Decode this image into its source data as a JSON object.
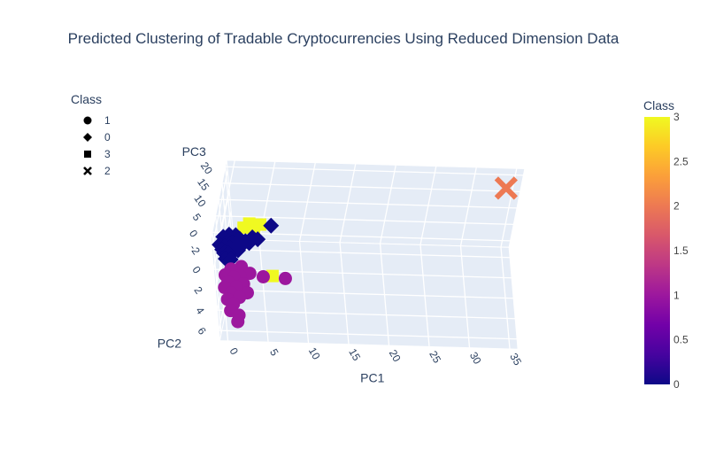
{
  "title": "Predicted Clustering of Tradable Cryptocurrencies Using Reduced Dimension Data",
  "legend": {
    "title": "Class",
    "items": [
      {
        "label": "1",
        "symbol": "circle"
      },
      {
        "label": "0",
        "symbol": "diamond"
      },
      {
        "label": "3",
        "symbol": "square"
      },
      {
        "label": "2",
        "symbol": "x"
      }
    ]
  },
  "colorbar": {
    "title": "Class",
    "ticks": [
      "0",
      "0.5",
      "1",
      "1.5",
      "2",
      "2.5",
      "3"
    ],
    "colors": [
      "#0d0887",
      "#46039f",
      "#7201a8",
      "#9c179e",
      "#bd3786",
      "#d8576b",
      "#ed7953",
      "#fb9f3a",
      "#fdca26",
      "#f0f921"
    ]
  },
  "axes": {
    "pc1": {
      "label": "PC1",
      "ticks": [
        "0",
        "5",
        "10",
        "15",
        "20",
        "25",
        "30",
        "35"
      ]
    },
    "pc2": {
      "label": "PC2",
      "ticks": [
        "-2",
        "0",
        "2",
        "4",
        "6"
      ]
    },
    "pc3": {
      "label": "PC3",
      "ticks": [
        "0",
        "5",
        "10",
        "15",
        "20"
      ]
    }
  },
  "chart_data": {
    "type": "scatter",
    "title": "Predicted Clustering of Tradable Cryptocurrencies Using Reduced Dimension Data",
    "xlabel": "PC1",
    "ylabel": "PC2",
    "zlabel": "PC3",
    "xlim": [
      -1,
      36
    ],
    "ylim": [
      -3,
      7
    ],
    "zlim": [
      -2,
      22
    ],
    "series": [
      {
        "name": "1",
        "class": 1,
        "symbol": "circle",
        "color": "#9c179e",
        "points": [
          {
            "pc1": 0.2,
            "pc2": 1.0,
            "pc3": -0.5
          },
          {
            "pc1": 0.5,
            "pc2": 1.6,
            "pc3": -0.8
          },
          {
            "pc1": 0.0,
            "pc2": 2.2,
            "pc3": -0.6
          },
          {
            "pc1": 0.8,
            "pc2": 2.6,
            "pc3": -1.0
          },
          {
            "pc1": 1.2,
            "pc2": 1.3,
            "pc3": -0.2
          },
          {
            "pc1": 1.5,
            "pc2": 2.0,
            "pc3": -0.9
          },
          {
            "pc1": 0.3,
            "pc2": 3.2,
            "pc3": -1.1
          },
          {
            "pc1": 1.0,
            "pc2": 3.6,
            "pc3": -1.2
          },
          {
            "pc1": 0.6,
            "pc2": 4.2,
            "pc3": -1.4
          },
          {
            "pc1": 1.6,
            "pc2": 4.6,
            "pc3": -1.5
          },
          {
            "pc1": 2.0,
            "pc2": 1.1,
            "pc3": -0.4
          },
          {
            "pc1": 2.4,
            "pc2": 1.8,
            "pc3": -0.6
          },
          {
            "pc1": 3.2,
            "pc2": 1.0,
            "pc3": 0.2
          },
          {
            "pc1": 4.8,
            "pc2": 1.4,
            "pc3": 0.5
          },
          {
            "pc1": 7.5,
            "pc2": 1.6,
            "pc3": 0.8
          },
          {
            "pc1": 2.8,
            "pc2": 2.6,
            "pc3": -0.8
          },
          {
            "pc1": 1.8,
            "pc2": 3.0,
            "pc3": -1.0
          },
          {
            "pc1": 0.9,
            "pc2": 0.6,
            "pc3": 0.1
          },
          {
            "pc1": 2.2,
            "pc2": 0.4,
            "pc3": 0.3
          },
          {
            "pc1": 1.4,
            "pc2": 5.2,
            "pc3": -1.6
          }
        ]
      },
      {
        "name": "0",
        "class": 0,
        "symbol": "diamond",
        "color": "#0d0887",
        "points": [
          {
            "pc1": -0.3,
            "pc2": -1.6,
            "pc3": 0.6
          },
          {
            "pc1": 0.0,
            "pc2": -1.2,
            "pc3": 0.4
          },
          {
            "pc1": 0.3,
            "pc2": -1.4,
            "pc3": 0.9
          },
          {
            "pc1": 0.6,
            "pc2": -1.7,
            "pc3": 1.2
          },
          {
            "pc1": 0.9,
            "pc2": -1.3,
            "pc3": 0.8
          },
          {
            "pc1": 1.2,
            "pc2": -1.6,
            "pc3": 1.4
          },
          {
            "pc1": 1.5,
            "pc2": -1.2,
            "pc3": 1.0
          },
          {
            "pc1": 1.8,
            "pc2": -1.5,
            "pc3": 1.6
          },
          {
            "pc1": 2.1,
            "pc2": -1.8,
            "pc3": 2.0
          },
          {
            "pc1": 2.4,
            "pc2": -1.4,
            "pc3": 1.3
          },
          {
            "pc1": 2.8,
            "pc2": -1.6,
            "pc3": 1.9
          },
          {
            "pc1": 0.2,
            "pc2": -0.9,
            "pc3": 0.3
          },
          {
            "pc1": 0.7,
            "pc2": -0.8,
            "pc3": 0.5
          },
          {
            "pc1": 1.3,
            "pc2": -0.9,
            "pc3": 0.7
          },
          {
            "pc1": 1.9,
            "pc2": -1.0,
            "pc3": 0.9
          },
          {
            "pc1": 0.1,
            "pc2": -2.0,
            "pc3": 1.8
          },
          {
            "pc1": 0.8,
            "pc2": -2.1,
            "pc3": 2.2
          },
          {
            "pc1": 1.6,
            "pc2": -2.0,
            "pc3": 2.4
          },
          {
            "pc1": 3.2,
            "pc2": -1.3,
            "pc3": 2.3
          },
          {
            "pc1": 3.6,
            "pc2": -1.7,
            "pc3": 2.8
          },
          {
            "pc1": 4.2,
            "pc2": -1.4,
            "pc3": 3.2
          },
          {
            "pc1": 0.4,
            "pc2": -0.5,
            "pc3": -0.2
          },
          {
            "pc1": 1.0,
            "pc2": -0.4,
            "pc3": -0.1
          },
          {
            "pc1": 5.8,
            "pc2": -2.2,
            "pc3": 5.0
          }
        ]
      },
      {
        "name": "3",
        "class": 3,
        "symbol": "square",
        "color": "#f0f921",
        "points": [
          {
            "pc1": 2.5,
            "pc2": -2.3,
            "pc3": 3.8
          },
          {
            "pc1": 3.8,
            "pc2": -2.0,
            "pc3": 3.2
          },
          {
            "pc1": 4.5,
            "pc2": -2.4,
            "pc3": 4.6
          },
          {
            "pc1": 3.2,
            "pc2": -2.6,
            "pc3": 4.2
          },
          {
            "pc1": 6.0,
            "pc2": 1.2,
            "pc3": 0.2
          }
        ]
      },
      {
        "name": "2",
        "class": 2,
        "symbol": "x",
        "color": "#ed7953",
        "points": [
          {
            "pc1": 34.0,
            "pc2": -2.5,
            "pc3": 17.5
          }
        ]
      }
    ]
  }
}
